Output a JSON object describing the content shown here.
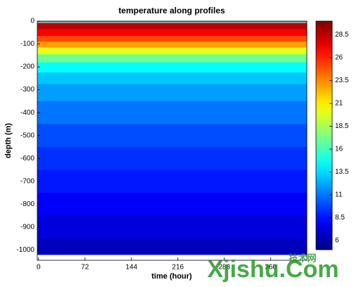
{
  "chart_data": {
    "type": "heatmap",
    "title": "temperature along profiles",
    "x_label": "time (hour)",
    "y_label": "depth (m)",
    "xlim": [
      -2,
      416
    ],
    "xticks": [
      0,
      72,
      144,
      216,
      288,
      360
    ],
    "ylim": [
      -1045,
      0
    ],
    "yticks": [
      0,
      -100,
      -200,
      -300,
      -400,
      -500,
      -600,
      -700,
      -800,
      -900,
      -1000
    ],
    "depths": [
      0,
      -20,
      -50,
      -80,
      -100,
      -130,
      -160,
      -200,
      -250,
      -300,
      -400,
      -500,
      -600,
      -700,
      -800,
      -900,
      -1000,
      -1020
    ],
    "values": [
      29,
      28.5,
      27,
      25,
      23,
      20,
      17,
      14.5,
      13,
      12,
      11,
      10,
      9.3,
      8.7,
      8,
      7.3,
      6.5,
      6.2
    ],
    "colormap": "jet",
    "clim": [
      5,
      30
    ],
    "cticks": [
      6,
      8.5,
      11,
      13.5,
      16,
      18.5,
      21,
      23.5,
      26,
      28.5
    ],
    "watermark": {
      "text": "Xjishu.Com",
      "chinese": "技术网"
    }
  }
}
